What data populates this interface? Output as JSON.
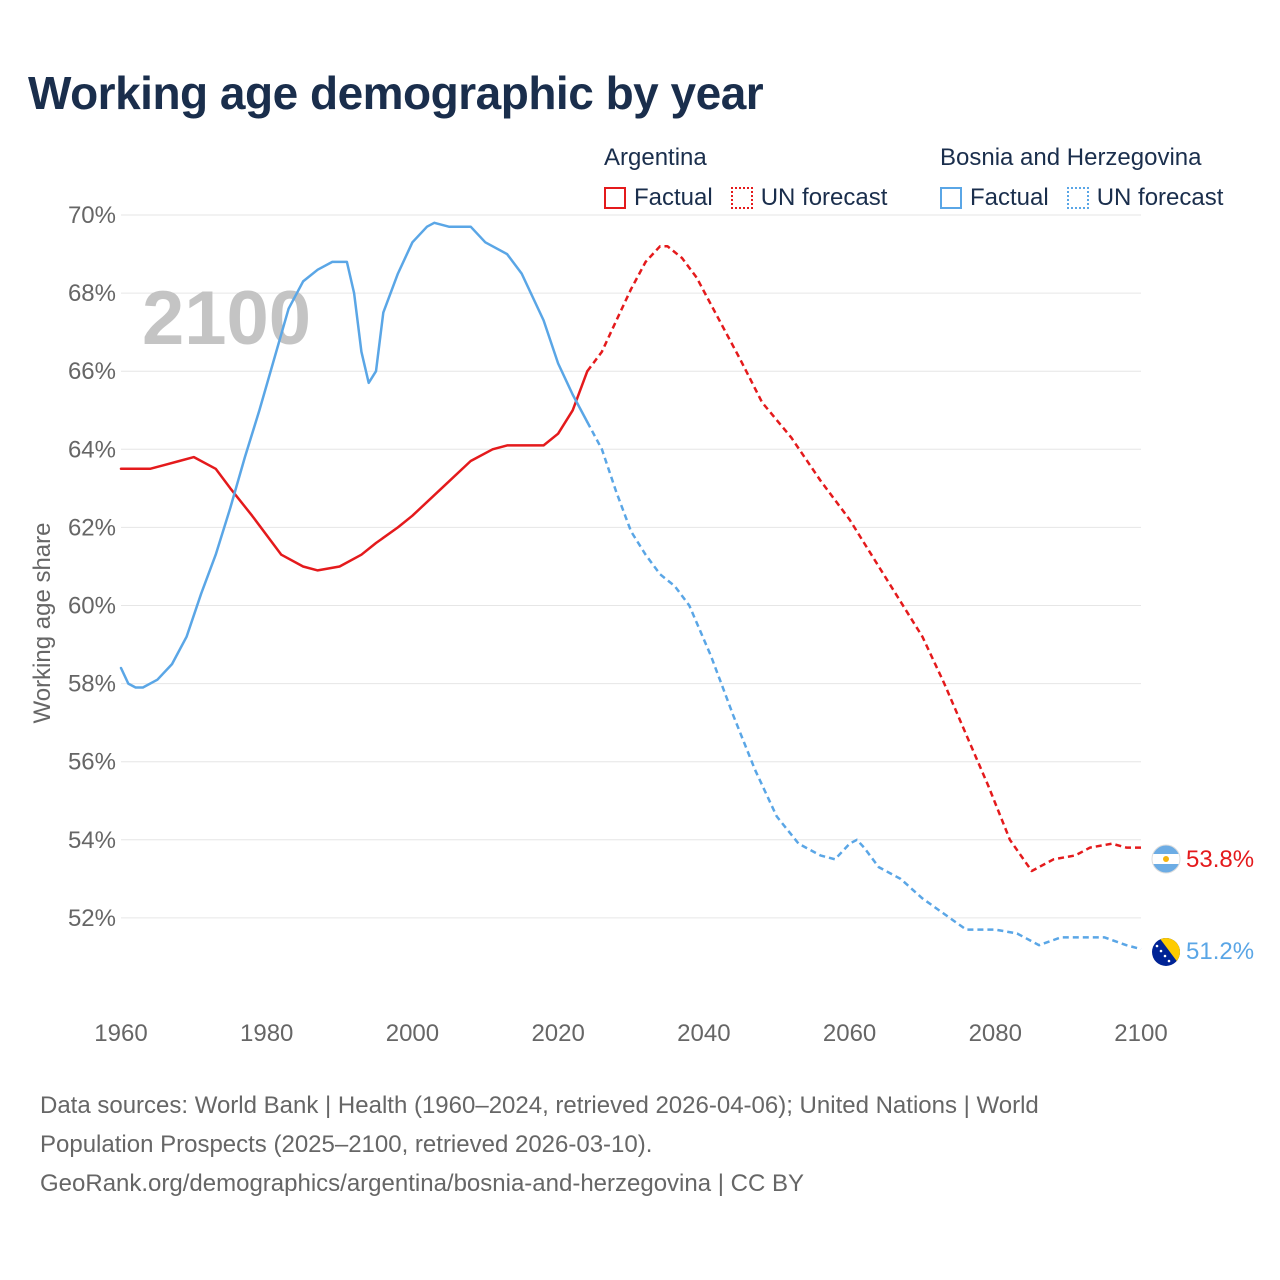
{
  "title": "Working age demographic by year",
  "legend": {
    "groups": [
      {
        "country": "Argentina",
        "factual_label": "Factual",
        "forecast_label": "UN forecast",
        "color": "#e41a1c"
      },
      {
        "country": "Bosnia and Herzegovina",
        "factual_label": "Factual",
        "forecast_label": "UN forecast",
        "color": "#5aa6e6"
      }
    ]
  },
  "chart_data": {
    "type": "line",
    "title": "Working age demographic by year",
    "ylabel": "Working age share",
    "xlabel": "",
    "year_watermark": "2100",
    "xlim": [
      1960,
      2100
    ],
    "ylim": [
      50,
      70
    ],
    "x_ticks": [
      1960,
      1980,
      2000,
      2020,
      2040,
      2060,
      2080,
      2100
    ],
    "y_ticks": [
      52,
      54,
      56,
      58,
      60,
      62,
      64,
      66,
      68,
      70
    ],
    "y_tick_labels": [
      "52%",
      "54%",
      "56%",
      "58%",
      "60%",
      "62%",
      "64%",
      "66%",
      "68%",
      "70%"
    ],
    "series": [
      {
        "name": "Argentina",
        "color": "#e41a1c",
        "factual_until": 2024,
        "end_label": "53.8%",
        "points": [
          [
            1960,
            63.5
          ],
          [
            1964,
            63.5
          ],
          [
            1966,
            63.6
          ],
          [
            1968,
            63.7
          ],
          [
            1970,
            63.8
          ],
          [
            1973,
            63.5
          ],
          [
            1975,
            63.0
          ],
          [
            1978,
            62.3
          ],
          [
            1982,
            61.3
          ],
          [
            1985,
            61.0
          ],
          [
            1987,
            60.9
          ],
          [
            1990,
            61.0
          ],
          [
            1993,
            61.3
          ],
          [
            1995,
            61.6
          ],
          [
            1998,
            62.0
          ],
          [
            2000,
            62.3
          ],
          [
            2004,
            63.0
          ],
          [
            2008,
            63.7
          ],
          [
            2011,
            64.0
          ],
          [
            2013,
            64.1
          ],
          [
            2018,
            64.1
          ],
          [
            2020,
            64.4
          ],
          [
            2022,
            65.0
          ],
          [
            2024,
            66.0
          ],
          [
            2026,
            66.5
          ],
          [
            2028,
            67.3
          ],
          [
            2030,
            68.1
          ],
          [
            2032,
            68.8
          ],
          [
            2034,
            69.2
          ],
          [
            2035,
            69.2
          ],
          [
            2037,
            68.9
          ],
          [
            2039,
            68.4
          ],
          [
            2041,
            67.7
          ],
          [
            2045,
            66.3
          ],
          [
            2048,
            65.2
          ],
          [
            2052,
            64.3
          ],
          [
            2056,
            63.2
          ],
          [
            2060,
            62.2
          ],
          [
            2063,
            61.3
          ],
          [
            2066,
            60.4
          ],
          [
            2070,
            59.2
          ],
          [
            2073,
            58.0
          ],
          [
            2076,
            56.7
          ],
          [
            2079,
            55.4
          ],
          [
            2082,
            54.0
          ],
          [
            2085,
            53.2
          ],
          [
            2088,
            53.5
          ],
          [
            2091,
            53.6
          ],
          [
            2093,
            53.8
          ],
          [
            2096,
            53.9
          ],
          [
            2098,
            53.8
          ],
          [
            2100,
            53.8
          ]
        ]
      },
      {
        "name": "Bosnia and Herzegovina",
        "color": "#5aa6e6",
        "factual_until": 2024,
        "end_label": "51.2%",
        "points": [
          [
            1960,
            58.4
          ],
          [
            1961,
            58.0
          ],
          [
            1962,
            57.9
          ],
          [
            1963,
            57.9
          ],
          [
            1965,
            58.1
          ],
          [
            1967,
            58.5
          ],
          [
            1969,
            59.2
          ],
          [
            1971,
            60.3
          ],
          [
            1973,
            61.3
          ],
          [
            1975,
            62.5
          ],
          [
            1977,
            63.8
          ],
          [
            1979,
            65.0
          ],
          [
            1981,
            66.3
          ],
          [
            1983,
            67.6
          ],
          [
            1985,
            68.3
          ],
          [
            1987,
            68.6
          ],
          [
            1989,
            68.8
          ],
          [
            1991,
            68.8
          ],
          [
            1992,
            68.0
          ],
          [
            1993,
            66.5
          ],
          [
            1994,
            65.7
          ],
          [
            1995,
            66.0
          ],
          [
            1996,
            67.5
          ],
          [
            1998,
            68.5
          ],
          [
            2000,
            69.3
          ],
          [
            2002,
            69.7
          ],
          [
            2003,
            69.8
          ],
          [
            2005,
            69.7
          ],
          [
            2008,
            69.7
          ],
          [
            2010,
            69.3
          ],
          [
            2013,
            69.0
          ],
          [
            2015,
            68.5
          ],
          [
            2018,
            67.3
          ],
          [
            2020,
            66.2
          ],
          [
            2022,
            65.4
          ],
          [
            2024,
            64.7
          ],
          [
            2026,
            64.0
          ],
          [
            2028,
            62.9
          ],
          [
            2030,
            61.9
          ],
          [
            2032,
            61.3
          ],
          [
            2034,
            60.8
          ],
          [
            2036,
            60.5
          ],
          [
            2038,
            60.0
          ],
          [
            2041,
            58.7
          ],
          [
            2044,
            57.2
          ],
          [
            2047,
            55.8
          ],
          [
            2050,
            54.6
          ],
          [
            2053,
            53.9
          ],
          [
            2056,
            53.6
          ],
          [
            2058,
            53.5
          ],
          [
            2060,
            53.9
          ],
          [
            2061,
            54.0
          ],
          [
            2062,
            53.8
          ],
          [
            2064,
            53.3
          ],
          [
            2067,
            53.0
          ],
          [
            2070,
            52.5
          ],
          [
            2073,
            52.1
          ],
          [
            2076,
            51.7
          ],
          [
            2080,
            51.7
          ],
          [
            2083,
            51.6
          ],
          [
            2086,
            51.3
          ],
          [
            2089,
            51.5
          ],
          [
            2092,
            51.5
          ],
          [
            2095,
            51.5
          ],
          [
            2098,
            51.3
          ],
          [
            2100,
            51.2
          ]
        ]
      }
    ]
  },
  "source": {
    "line1": "Data sources: World Bank | Health (1960–2024, retrieved 2026-04-06); United Nations | World",
    "line2": "Population Prospects (2025–2100, retrieved 2026-03-10).",
    "line3": "GeoRank.org/demographics/argentina/bosnia-and-herzegovina | CC BY"
  }
}
